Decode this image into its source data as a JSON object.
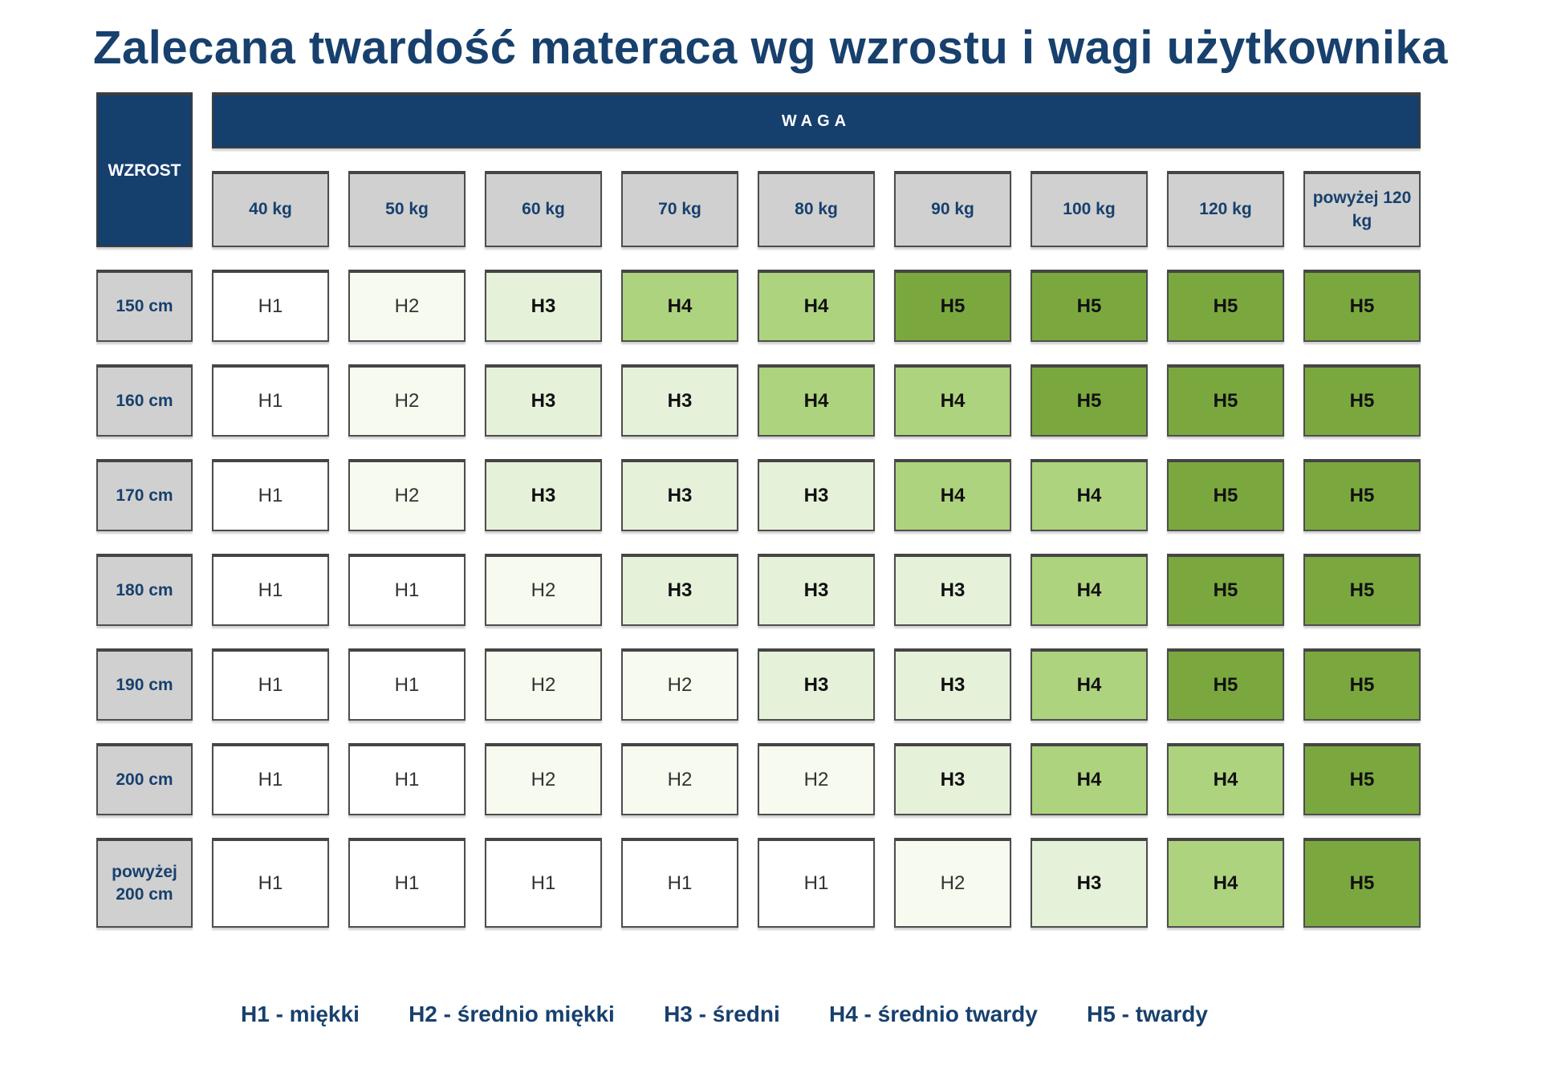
{
  "title": "Zalecana twardość materaca wg wzrostu i wagi użytkownika",
  "chart_data": {
    "type": "heatmap",
    "title": "Zalecana twardość materaca wg wzrostu i wagi użytkownika",
    "x_axis_label": "WAGA",
    "y_axis_label": "WZROST",
    "columns": [
      "40 kg",
      "50 kg",
      "60 kg",
      "70 kg",
      "80 kg",
      "90 kg",
      "100 kg",
      "120 kg",
      "powyżej 120 kg"
    ],
    "rows": [
      "150 cm",
      "160 cm",
      "170 cm",
      "180 cm",
      "190 cm",
      "200 cm",
      "powyżej 200 cm"
    ],
    "values": [
      [
        "H1",
        "H2",
        "H3",
        "H4",
        "H4",
        "H5",
        "H5",
        "H5",
        "H5"
      ],
      [
        "H1",
        "H2",
        "H3",
        "H3",
        "H4",
        "H4",
        "H5",
        "H5",
        "H5"
      ],
      [
        "H1",
        "H2",
        "H3",
        "H3",
        "H3",
        "H4",
        "H4",
        "H5",
        "H5"
      ],
      [
        "H1",
        "H1",
        "H2",
        "H3",
        "H3",
        "H3",
        "H4",
        "H5",
        "H5"
      ],
      [
        "H1",
        "H1",
        "H2",
        "H2",
        "H3",
        "H3",
        "H4",
        "H5",
        "H5"
      ],
      [
        "H1",
        "H1",
        "H2",
        "H2",
        "H2",
        "H3",
        "H4",
        "H4",
        "H5"
      ],
      [
        "H1",
        "H1",
        "H1",
        "H1",
        "H1",
        "H2",
        "H3",
        "H4",
        "H5"
      ]
    ],
    "levels": {
      "H1": {
        "legend_label": "H1 - miękki",
        "color": "#ffffff"
      },
      "H2": {
        "legend_label": "H2 - średnio miękki",
        "color": "#f6faef"
      },
      "H3": {
        "legend_label": "H3 - średni",
        "color": "#e6f1d9"
      },
      "H4": {
        "legend_label": "H4 - średnio twardy",
        "color": "#aed37e"
      },
      "H5": {
        "legend_label": "H5 - twardy",
        "color": "#7aa83e"
      }
    },
    "legend_position": "bottom",
    "grid": false
  },
  "colors": {
    "navy": "#153f6d",
    "title_text": "#17406d",
    "header_gray": "#d0d0d0",
    "cell_border": "#4e4e4e"
  }
}
